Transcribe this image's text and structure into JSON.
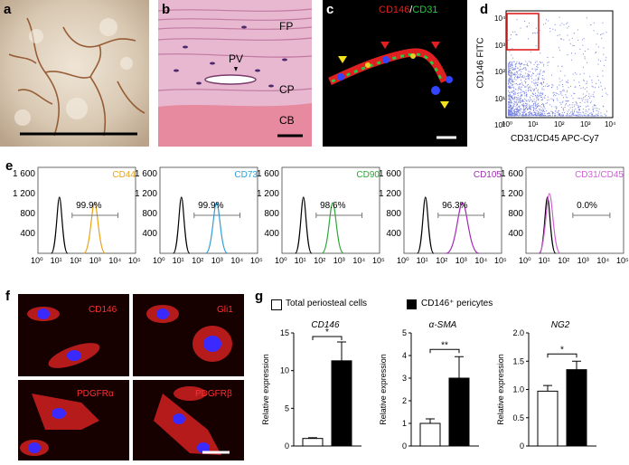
{
  "panels": {
    "a": {
      "letter": "a"
    },
    "b": {
      "letter": "b",
      "labels": {
        "fp": "FP",
        "pv": "PV",
        "cp": "CP",
        "cb": "CB"
      }
    },
    "c": {
      "letter": "c",
      "stain_red": "CD146",
      "stain_sep": "/",
      "stain_green": "CD31"
    },
    "d": {
      "letter": "d",
      "ylabel": "CD146 FITC",
      "xlabel": "CD31/CD45 APC-Cy7",
      "y_ticks": [
        "10⁴",
        "10³",
        "10²",
        "10¹",
        "10⁰"
      ],
      "x_ticks": [
        "10⁰",
        "10¹",
        "10²",
        "10³",
        "10⁴"
      ]
    },
    "e": {
      "letter": "e"
    },
    "f": {
      "letter": "f",
      "labels": [
        "CD146",
        "Gli1",
        "PDGFRα",
        "PDGFRβ"
      ]
    },
    "g": {
      "letter": "g",
      "legend": {
        "open": "Total periosteal cells",
        "filled": "CD146⁺ pericytes"
      }
    }
  },
  "colors": {
    "cd44": "#e8a317",
    "cd73": "#2f9fd8",
    "cd90": "#2ea834",
    "cd105": "#a42ab8",
    "cd31cd45": "#d160d6",
    "control": "#000000",
    "micro_red": "#e02020",
    "micro_green": "#22cc44",
    "micro_blue": "#3344ff"
  },
  "histograms": {
    "y_ticks": [
      "1 600",
      "1 200",
      "800",
      "400"
    ],
    "x_ticks": [
      "10⁰",
      "10¹",
      "10²",
      "10³",
      "10⁴",
      "10⁵"
    ],
    "items": [
      {
        "marker": "CD44",
        "percent": "99.9%",
        "color": "#e8a317"
      },
      {
        "marker": "CD73",
        "percent": "99.9%",
        "color": "#2f9fd8"
      },
      {
        "marker": "CD90",
        "percent": "98.6%",
        "color": "#2ea834"
      },
      {
        "marker": "CD105",
        "percent": "96.3%",
        "color": "#a42ab8"
      },
      {
        "marker": "CD31/CD45",
        "percent": "0.0%",
        "color": "#d160d6"
      }
    ]
  },
  "chart_data": [
    {
      "type": "bar",
      "title": "CD146",
      "ylabel": "Relative expression",
      "categories": [
        "Total periosteal cells",
        "CD146⁺ pericytes"
      ],
      "series": [
        {
          "values": [
            1.0,
            11.3
          ]
        }
      ],
      "errors": [
        0.1,
        2.5
      ],
      "ylim": [
        0,
        15
      ],
      "y_ticks": [
        "0",
        "5",
        "10",
        "15"
      ],
      "significance": "*"
    },
    {
      "type": "bar",
      "title": "α-SMA",
      "ylabel": "Relative expression",
      "categories": [
        "Total periosteal cells",
        "CD146⁺ pericytes"
      ],
      "series": [
        {
          "values": [
            1.0,
            3.0
          ]
        }
      ],
      "errors": [
        0.2,
        0.95
      ],
      "ylim": [
        0,
        5
      ],
      "y_ticks": [
        "0",
        "1",
        "2",
        "3",
        "4",
        "5"
      ],
      "significance": "**"
    },
    {
      "type": "bar",
      "title": "NG2",
      "ylabel": "Relative expression",
      "categories": [
        "Total periosteal cells",
        "CD146⁺ pericytes"
      ],
      "series": [
        {
          "values": [
            0.97,
            1.35
          ]
        }
      ],
      "errors": [
        0.1,
        0.15
      ],
      "ylim": [
        0,
        2.0
      ],
      "y_ticks": [
        "0",
        "0.5",
        "1.0",
        "1.5",
        "2.0"
      ],
      "significance": "*"
    }
  ]
}
